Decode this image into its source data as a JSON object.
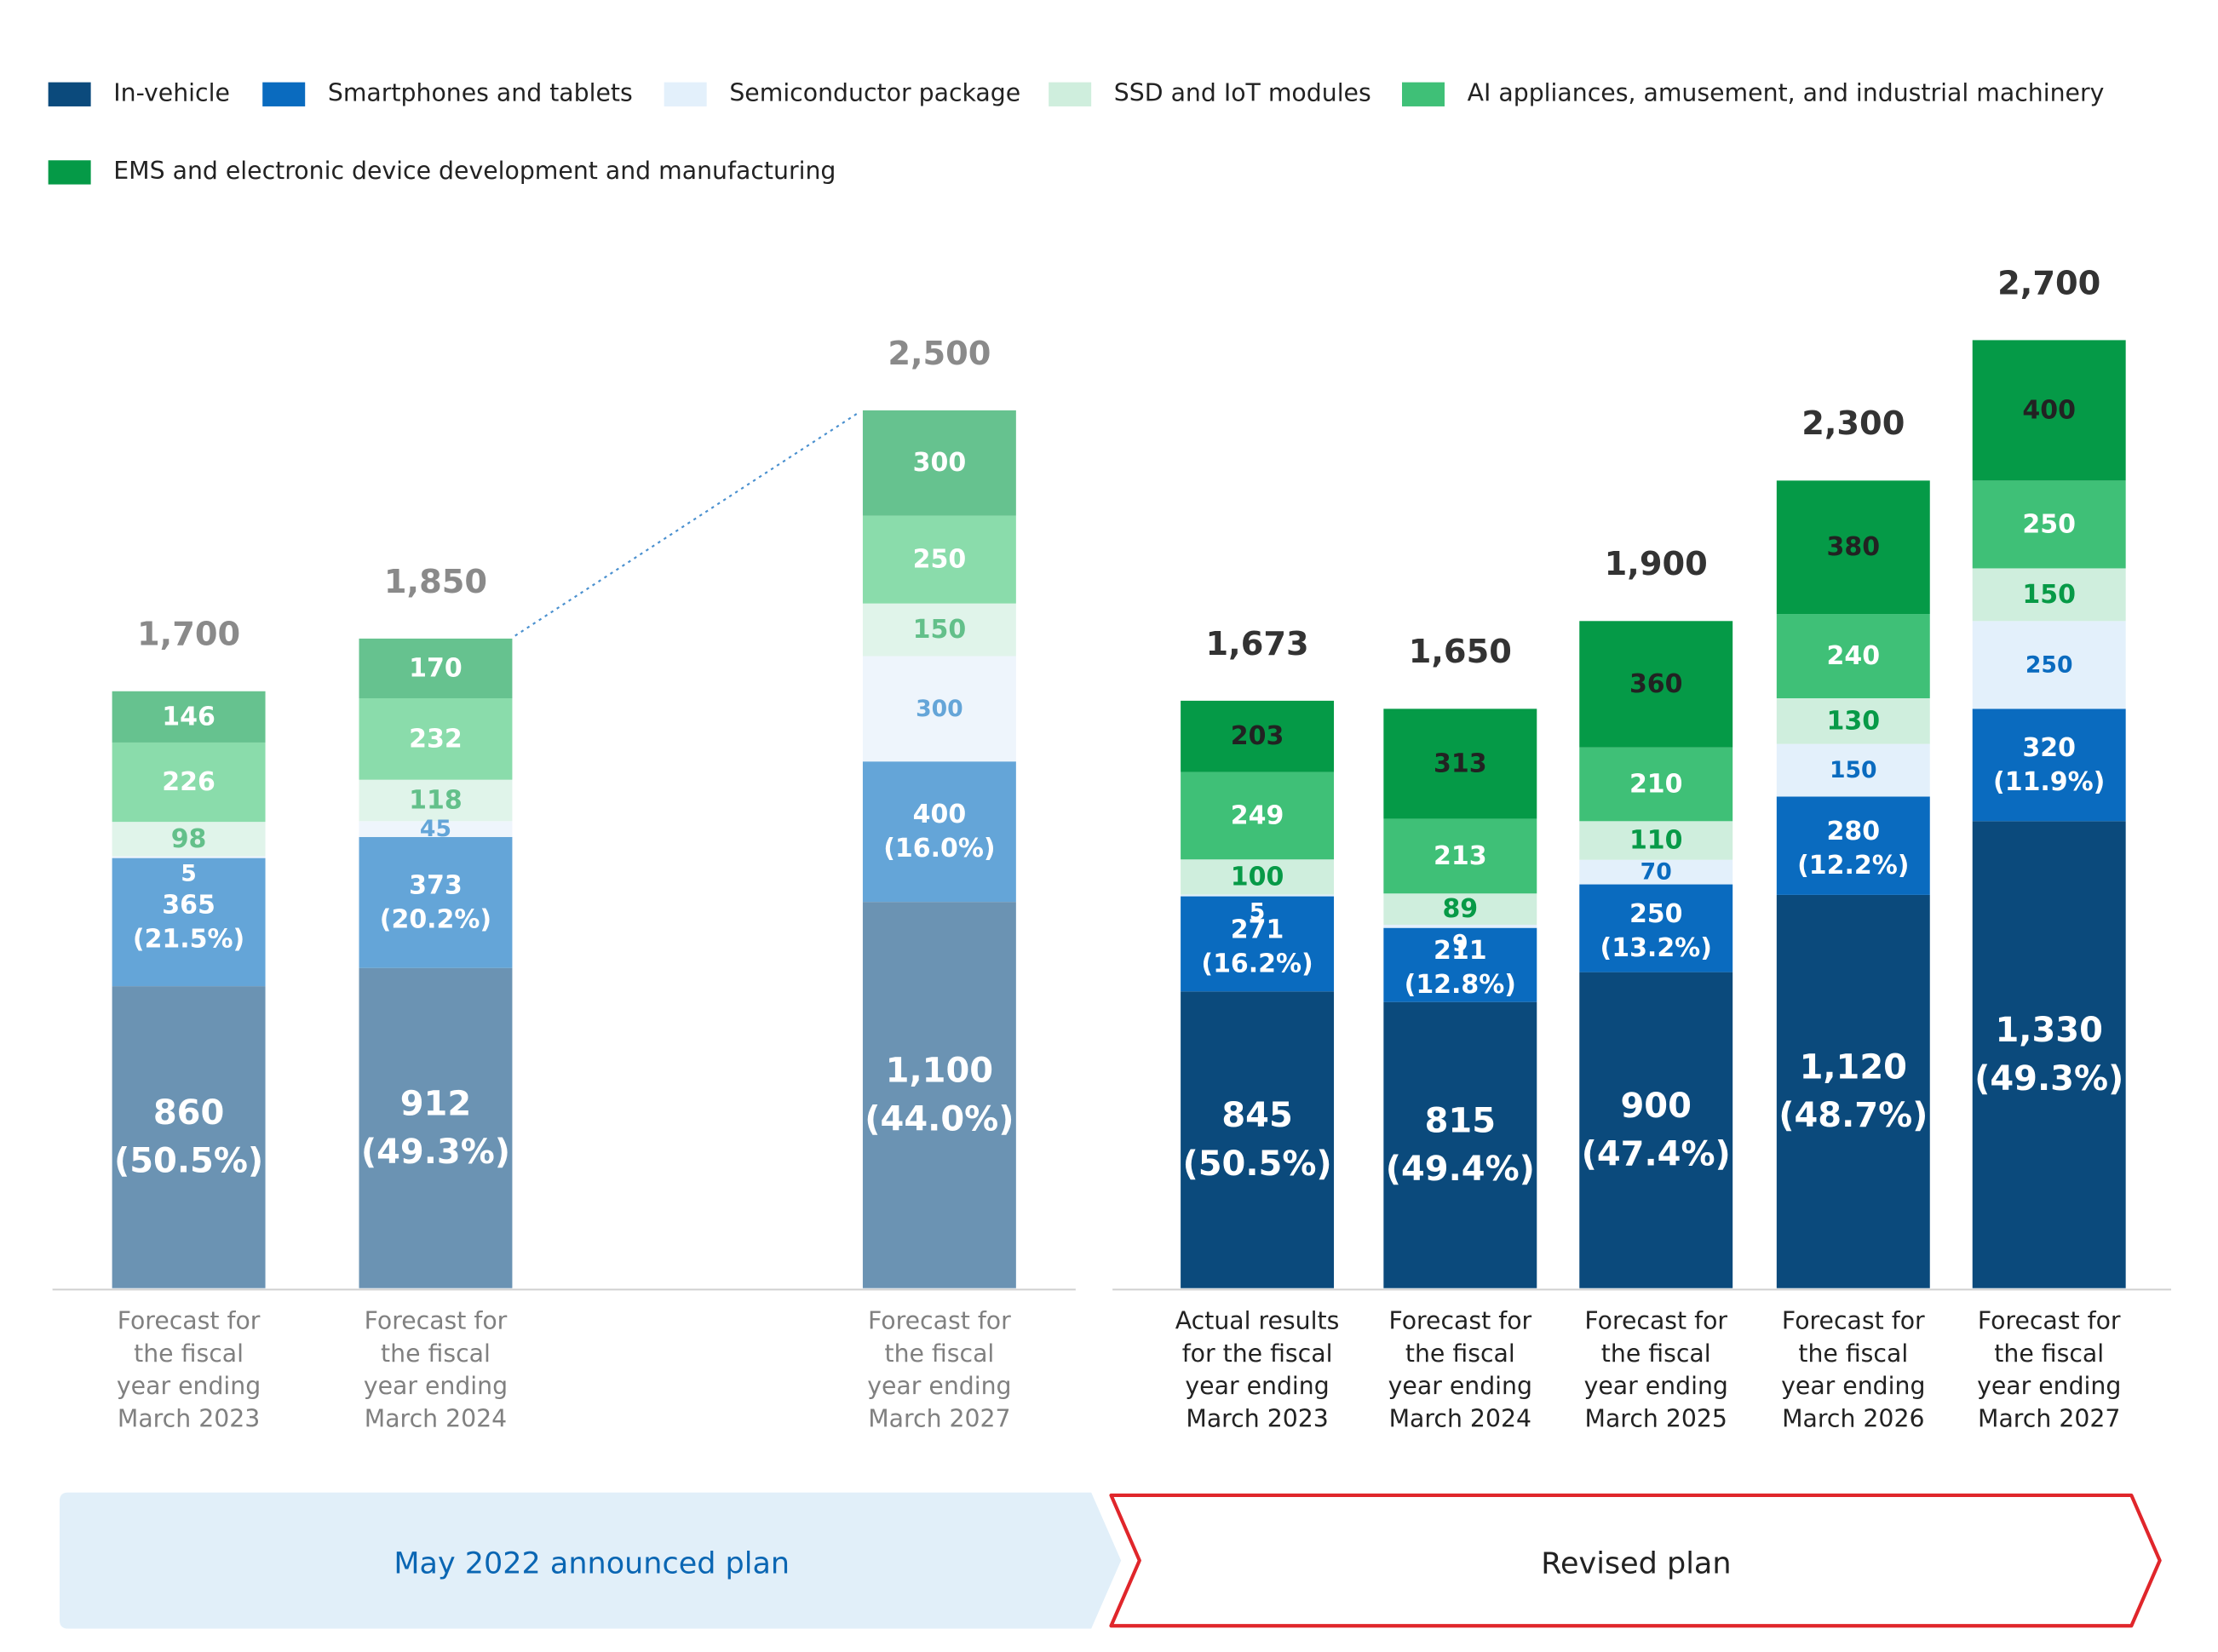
{
  "legend": [
    {
      "label": "In-vehicle",
      "color": "#0b4a7c"
    },
    {
      "label": "Smartphones and tablets",
      "color": "#0a6bbf"
    },
    {
      "label": "Semiconductor package",
      "color": "#e3f0fb"
    },
    {
      "label": "SSD and IoT modules",
      "color": "#cfeedd"
    },
    {
      "label": "AI appliances, amusement, and industrial machinery",
      "color": "#3fc077"
    },
    {
      "label": "EMS and electronic device development and manufacturing",
      "color": "#059a47"
    }
  ],
  "bands": {
    "announced": "May 2022 announced plan",
    "revised": "Revised plan"
  },
  "chart_data": [
    {
      "type": "bar",
      "stacked": true,
      "plan": "May 2022 announced plan",
      "categories": [
        "Forecast for the fiscal year ending March 2023",
        "Forecast for the fiscal year ending March 2024",
        "Forecast for the fiscal year ending March 2027"
      ],
      "category_lines": [
        [
          "Forecast for",
          "the fiscal",
          "year ending",
          "March 2023"
        ],
        [
          "Forecast for",
          "the fiscal",
          "year ending",
          "March 2024"
        ],
        [
          "Forecast for",
          "the fiscal",
          "year ending",
          "March 2027"
        ]
      ],
      "totals": [
        "1,700",
        "1,850",
        "2,500"
      ],
      "series": [
        {
          "name": "In-vehicle",
          "values": [
            860,
            912,
            1100
          ],
          "labels": [
            "860",
            "912",
            "1,100"
          ],
          "pct": [
            "(50.5%)",
            "(49.3%)",
            "(44.0%)"
          ],
          "color": "#6b93b3",
          "text_color": "#ffffff"
        },
        {
          "name": "Smartphones and tablets",
          "values": [
            365,
            373,
            400
          ],
          "labels": [
            "365",
            "373",
            "400"
          ],
          "pct": [
            "(21.5%)",
            "(20.2%)",
            "(16.0%)"
          ],
          "color": "#64a5d8",
          "text_color": "#ffffff"
        },
        {
          "name": "Semiconductor package",
          "values": [
            5,
            45,
            300
          ],
          "labels": [
            "5",
            "45",
            "300"
          ],
          "color": "#eef5fc",
          "text_color": "#64a5d8"
        },
        {
          "name": "SSD and IoT modules",
          "values": [
            98,
            118,
            150
          ],
          "labels": [
            "98",
            "118",
            "150"
          ],
          "color": "#e0f4ea",
          "text_color": "#63c08a"
        },
        {
          "name": "AI appliances, amusement, and industrial machinery",
          "values": [
            226,
            232,
            250
          ],
          "labels": [
            "226",
            "232",
            "250"
          ],
          "color": "#8adcab",
          "text_color": "#ffffff"
        },
        {
          "name": "EMS and electronic device development and manufacturing",
          "values": [
            146,
            170,
            300
          ],
          "labels": [
            "146",
            "170",
            "300"
          ],
          "color": "#66c28f",
          "text_color": "#ffffff"
        }
      ]
    },
    {
      "type": "bar",
      "stacked": true,
      "plan": "Revised plan",
      "categories": [
        "Actual results for the fiscal year ending March 2023",
        "Forecast for the fiscal year ending March 2024",
        "Forecast for the fiscal year ending March 2025",
        "Forecast for the fiscal year ending March 2026",
        "Forecast for the fiscal year ending March 2027"
      ],
      "category_lines": [
        [
          "Actual results",
          "for the fiscal",
          "year ending",
          "March 2023"
        ],
        [
          "Forecast for",
          "the fiscal",
          "year ending",
          "March 2024"
        ],
        [
          "Forecast for",
          "the fiscal",
          "year ending",
          "March 2025"
        ],
        [
          "Forecast for",
          "the fiscal",
          "year ending",
          "March 2026"
        ],
        [
          "Forecast for",
          "the fiscal",
          "year ending",
          "March 2027"
        ]
      ],
      "totals": [
        "1,673",
        "1,650",
        "1,900",
        "2,300",
        "2,700"
      ],
      "series": [
        {
          "name": "In-vehicle",
          "values": [
            845,
            815,
            900,
            1120,
            1330
          ],
          "labels": [
            "845",
            "815",
            "900",
            "1,120",
            "1,330"
          ],
          "pct": [
            "(50.5%)",
            "(49.4%)",
            "(47.4%)",
            "(48.7%)",
            "(49.3%)"
          ],
          "color": "#0b4a7c",
          "text_color": "#ffffff"
        },
        {
          "name": "Smartphones and tablets",
          "values": [
            271,
            211,
            250,
            280,
            320
          ],
          "labels": [
            "271",
            "211",
            "250",
            "280",
            "320"
          ],
          "pct": [
            "(16.2%)",
            "(12.8%)",
            "(13.2%)",
            "(12.2%)",
            "(11.9%)"
          ],
          "color": "#0a6bbf",
          "text_color": "#ffffff"
        },
        {
          "name": "Semiconductor package",
          "values": [
            5,
            9,
            70,
            150,
            250
          ],
          "labels": [
            "5",
            "9",
            "70",
            "150",
            "250"
          ],
          "color": "#e3f0fb",
          "text_color": "#0a6bbf"
        },
        {
          "name": "SSD and IoT modules",
          "values": [
            100,
            89,
            110,
            130,
            150
          ],
          "labels": [
            "100",
            "89",
            "110",
            "130",
            "150"
          ],
          "color": "#cfeedd",
          "text_color": "#079a47"
        },
        {
          "name": "AI appliances, amusement, and industrial machinery",
          "values": [
            249,
            213,
            210,
            240,
            250
          ],
          "labels": [
            "249",
            "213",
            "210",
            "240",
            "250"
          ],
          "color": "#3fc077",
          "text_color": "#ffffff"
        },
        {
          "name": "EMS and electronic device development and manufacturing",
          "values": [
            203,
            313,
            360,
            380,
            400
          ],
          "labels": [
            "203",
            "313",
            "360",
            "380",
            "400"
          ],
          "color": "#059a47",
          "text_color": "#222222"
        }
      ]
    }
  ]
}
